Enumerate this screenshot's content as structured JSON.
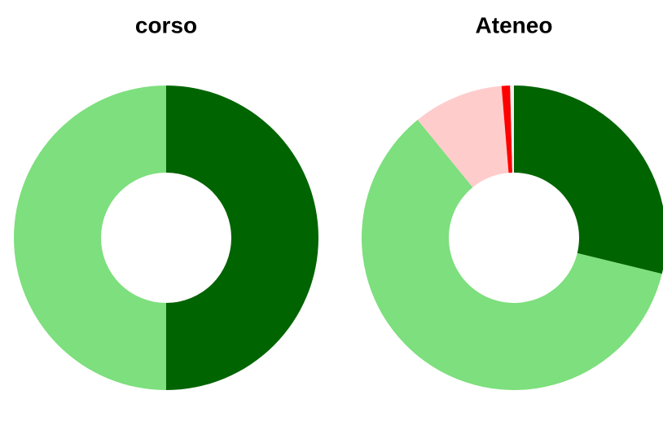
{
  "chart_data": [
    {
      "type": "donut",
      "title": "corso",
      "values": [
        50,
        50
      ],
      "colors": [
        "#006400",
        "#7ddf7d"
      ]
    },
    {
      "type": "donut",
      "title": "Ateneo",
      "values": [
        28.8,
        60.3,
        9.6,
        0.9,
        0.4
      ],
      "colors": [
        "#006400",
        "#7ddf7d",
        "#ffcccc",
        "#ff0000",
        "#f2f2f2"
      ]
    }
  ]
}
